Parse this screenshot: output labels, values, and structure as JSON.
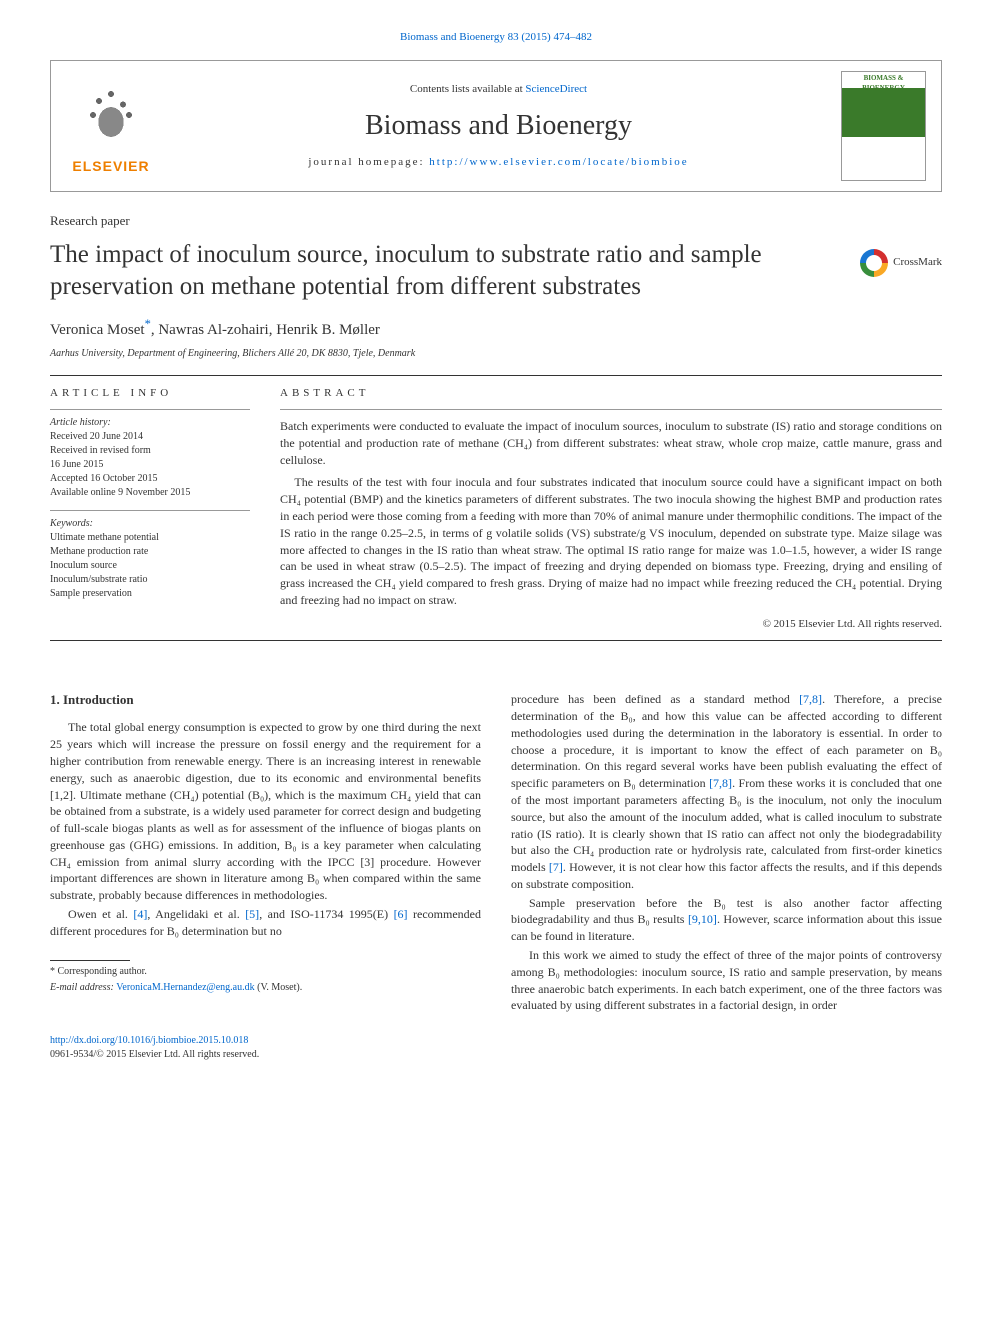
{
  "top_link": {
    "text": "Biomass and Bioenergy 83 (2015) 474–482"
  },
  "header": {
    "publisher_name": "ELSEVIER",
    "contents_prefix": "Contents lists available at ",
    "contents_site": "ScienceDirect",
    "journal_name": "Biomass and Bioenergy",
    "homepage_label": "journal homepage: ",
    "homepage_url": "http://www.elsevier.com/locate/biombioe",
    "cover_title": "BIOMASS & BIOENERGY"
  },
  "paper_type": "Research paper",
  "title": "The impact of inoculum source, inoculum to substrate ratio and sample preservation on methane potential from different substrates",
  "crossmark_label": "CrossMark",
  "authors_html": "Veronica Moset*, Nawras Al-zohairi, Henrik B. Møller",
  "affiliation": "Aarhus University, Department of Engineering, Blichers Allé 20, DK 8830, Tjele, Denmark",
  "info": {
    "heading": "article info",
    "history_label": "Article history:",
    "history": [
      "Received 20 June 2014",
      "Received in revised form",
      "16 June 2015",
      "Accepted 16 October 2015",
      "Available online 9 November 2015"
    ],
    "keywords_label": "Keywords:",
    "keywords": [
      "Ultimate methane potential",
      "Methane production rate",
      "Inoculum source",
      "Inoculum/substrate ratio",
      "Sample preservation"
    ]
  },
  "abstract": {
    "heading": "abstract",
    "p1": "Batch experiments were conducted to evaluate the impact of inoculum sources, inoculum to substrate (IS) ratio and storage conditions on the potential and production rate of methane (CH₄) from different substrates: wheat straw, whole crop maize, cattle manure, grass and cellulose.",
    "p2": "The results of the test with four inocula and four substrates indicated that inoculum source could have a significant impact on both CH₄ potential (BMP) and the kinetics parameters of different substrates. The two inocula showing the highest BMP and production rates in each period were those coming from a feeding with more than 70% of animal manure under thermophilic conditions. The impact of the IS ratio in the range 0.25–2.5, in terms of g volatile solids (VS) substrate/g VS inoculum, depended on substrate type. Maize silage was more affected to changes in the IS ratio than wheat straw. The optimal IS ratio range for maize was 1.0–1.5, however, a wider IS range can be used in wheat straw (0.5–2.5). The impact of freezing and drying depended on biomass type. Freezing, drying and ensiling of grass increased the CH₄ yield compared to fresh grass. Drying of maize had no impact while freezing reduced the CH₄ potential. Drying and freezing had no impact on straw.",
    "copyright": "© 2015 Elsevier Ltd. All rights reserved."
  },
  "body": {
    "section_heading": "1.  Introduction",
    "col1_p1": "The total global energy consumption is expected to grow by one third during the next 25 years which will increase the pressure on fossil energy and the requirement for a higher contribution from renewable energy. There is an increasing interest in renewable energy, such as anaerobic digestion, due to its economic and environmental benefits [1,2]. Ultimate methane (CH₄) potential (B₀), which is the maximum CH₄ yield that can be obtained from a substrate, is a widely used parameter for correct design and budgeting of full-scale biogas plants as well as for assessment of the influence of biogas plants on greenhouse gas (GHG) emissions. In addition, B₀ is a key parameter when calculating CH₄ emission from animal slurry according with the IPCC [3] procedure. However important differences are shown in literature among B₀ when compared within the same substrate, probably because differences in methodologies.",
    "col1_p2_pre": "Owen et al. ",
    "ref4": "[4]",
    "col1_p2_mid1": ", Angelidaki et al. ",
    "ref5": "[5]",
    "col1_p2_mid2": ", and ISO-11734 1995(E) ",
    "ref6": "[6]",
    "col1_p2_post": " recommended different procedures for B₀ determination but no",
    "col2_p1_pre": "procedure has been defined as a standard method ",
    "ref78a": "[7,8]",
    "col2_p1_mid": ". Therefore, a precise determination of the B₀, and how this value can be affected according to different methodologies used during the determination in the laboratory is essential. In order to choose a procedure, it is important to know the effect of each parameter on B₀ determination. On this regard several works have been publish evaluating the effect of specific parameters on B₀ determination ",
    "ref78b": "[7,8]",
    "col2_p1_mid2": ". From these works it is concluded that one of the most important parameters affecting B₀ is the inoculum, not only the inoculum source, but also the amount of the inoculum added, what is called inoculum to substrate ratio (IS ratio). It is clearly shown that IS ratio can affect not only the biodegradability but also the CH₄ production rate or hydrolysis rate, calculated from first-order kinetics models ",
    "ref7": "[7]",
    "col2_p1_post": ". However, it is not clear how this factor affects the results, and if this depends on substrate composition.",
    "col2_p2_pre": "Sample preservation before the B₀ test is also another factor affecting biodegradability and thus B₀ results ",
    "ref910": "[9,10]",
    "col2_p2_post": ". However, scarce information about this issue can be found in literature.",
    "col2_p3": "In this work we aimed to study the effect of three of the major points of controversy among B₀ methodologies: inoculum source, IS ratio and sample preservation, by means three anaerobic batch experiments. In each batch experiment, one of the three factors was evaluated by using different substrates in a factorial design, in order"
  },
  "footnote": {
    "corresponding": "* Corresponding author.",
    "email_label": "E-mail address: ",
    "email": "VeronicaM.Hernandez@eng.au.dk",
    "email_suffix": " (V. Moset)."
  },
  "footer": {
    "doi": "http://dx.doi.org/10.1016/j.biombioe.2015.10.018",
    "issn_line": "0961-9534/© 2015 Elsevier Ltd. All rights reserved."
  },
  "colors": {
    "link": "#0066cc",
    "elsevier_orange": "#ee7f00",
    "cover_green": "#3a7a2a",
    "text": "#333333"
  }
}
